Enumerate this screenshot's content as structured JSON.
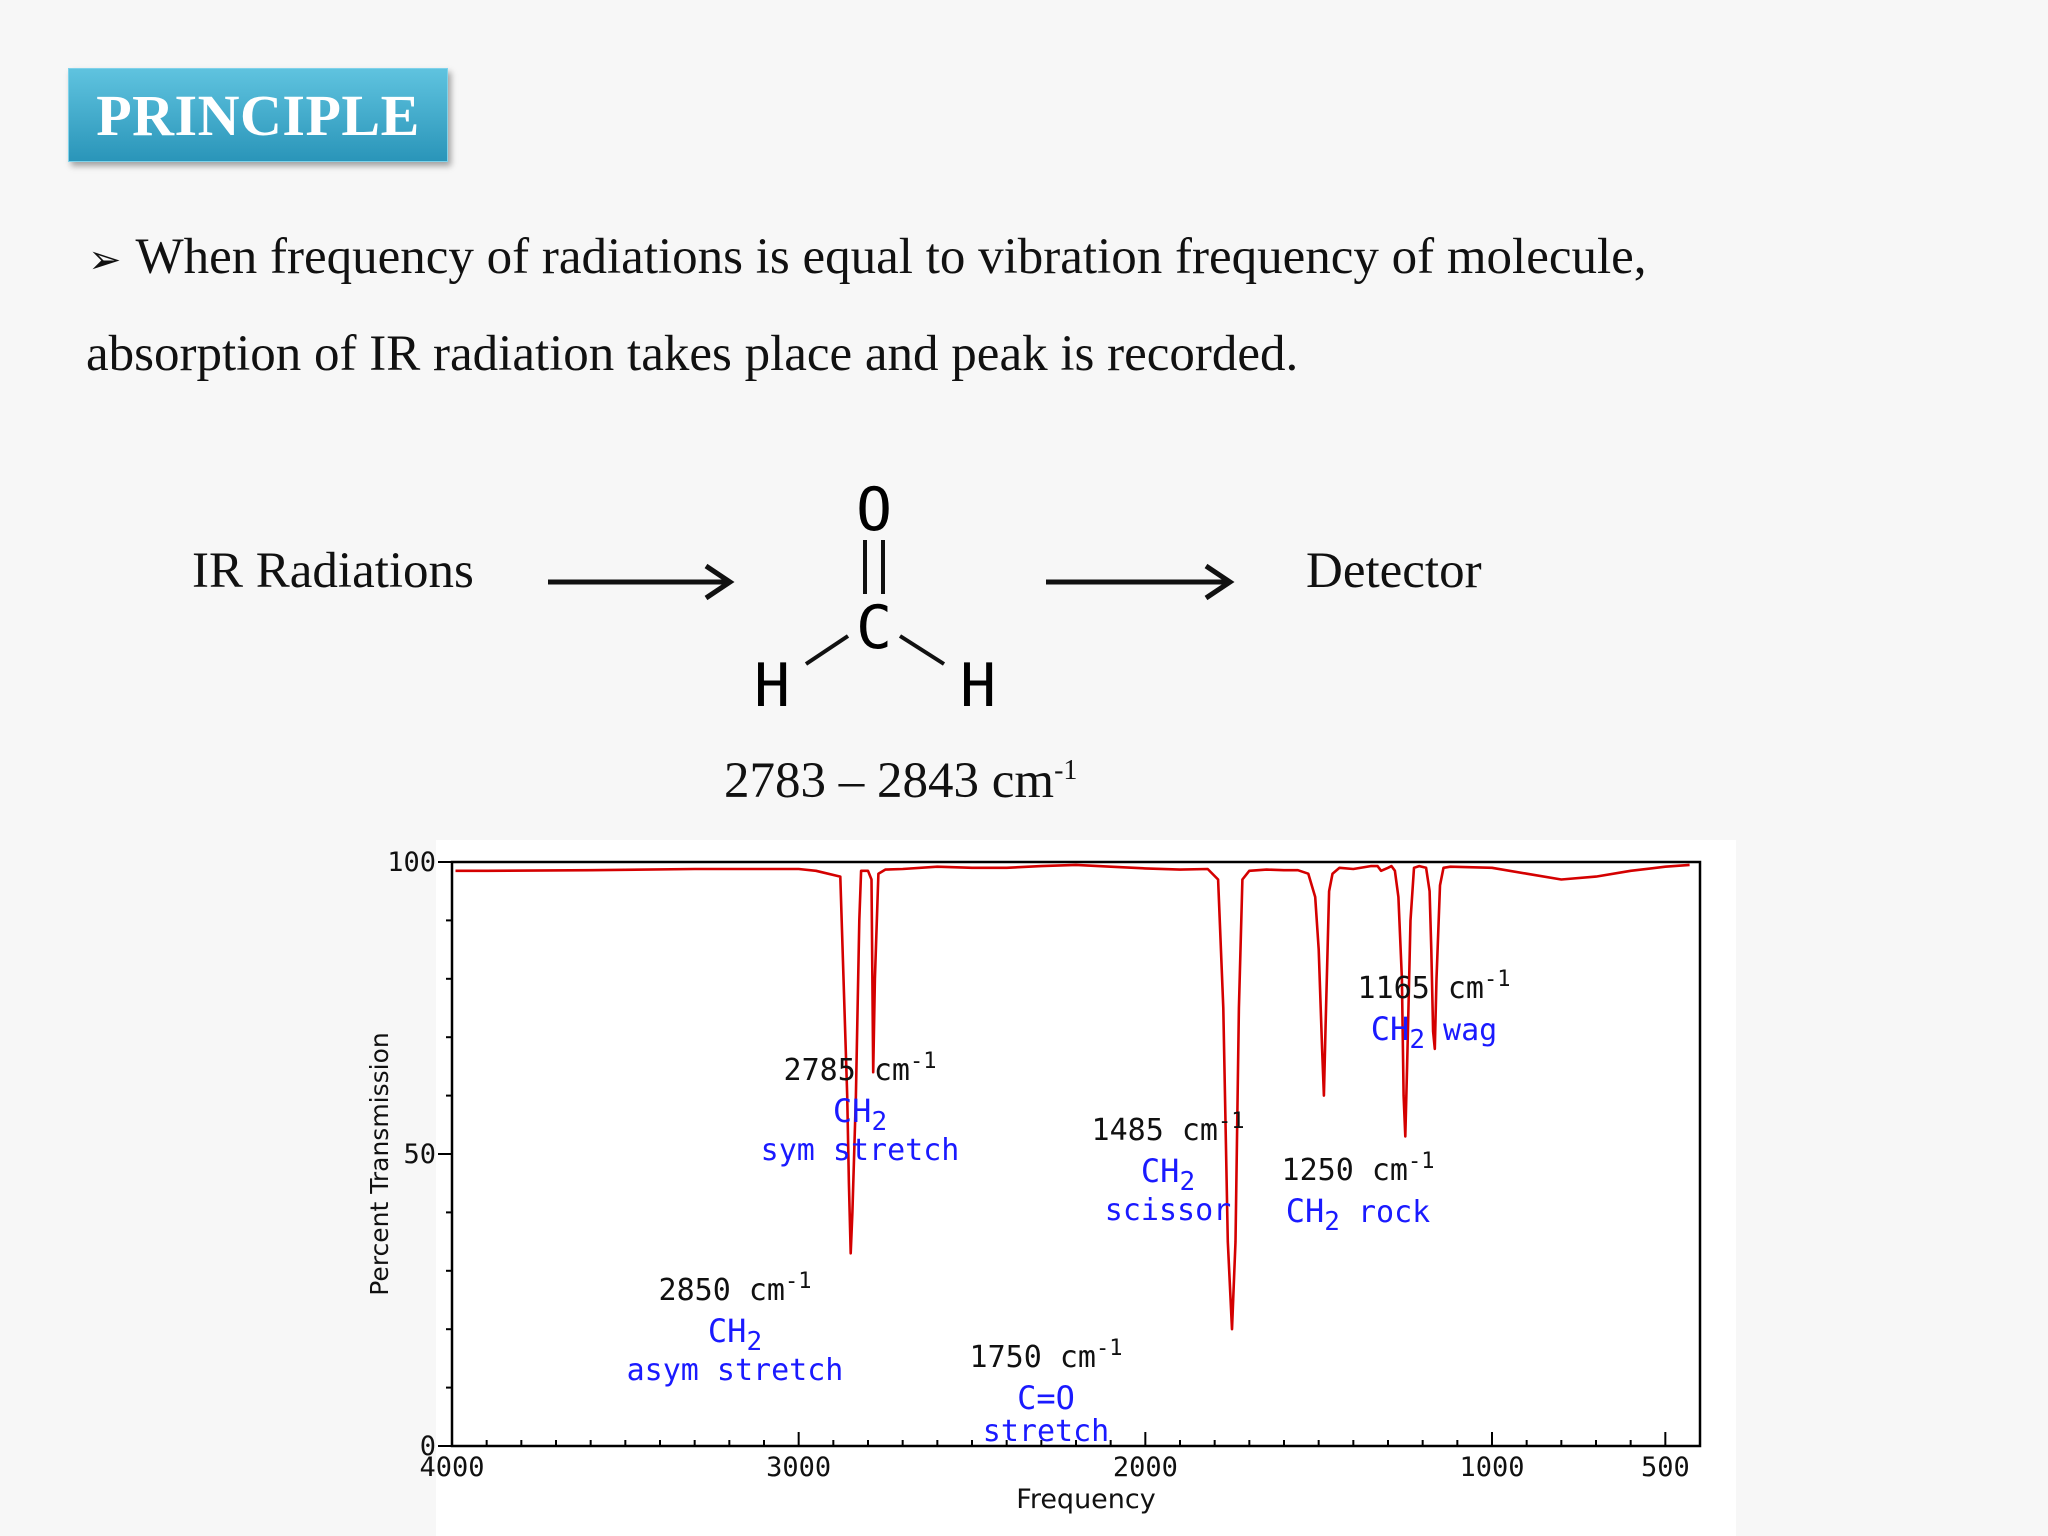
{
  "header": {
    "title": "PRINCIPLE"
  },
  "bullet": {
    "line1": "When frequency of radiations is equal to vibration frequency of molecule,",
    "line2": "absorption of IR radiation takes place and peak is recorded."
  },
  "diagram": {
    "source_label": "IR Radiations",
    "detector_label": "Detector",
    "molecule_atoms": {
      "top": "O",
      "center": "C",
      "left": "H",
      "right": "H"
    },
    "range_text": "2783 – 2843 cm",
    "range_sup": "-1"
  },
  "colors": {
    "title_bg": "#3aa8cb",
    "spectrum": "#d40000",
    "annotation_blue": "#1a1aff",
    "annotation_black": "#111111"
  },
  "chart_data": {
    "type": "line",
    "xlabel": "Frequency",
    "ylabel": "Percent Transmission",
    "xlim": [
      4000,
      400
    ],
    "ylim": [
      0,
      100
    ],
    "x_ticks": [
      "4000",
      "3000",
      "2000",
      "1000",
      "500"
    ],
    "x_tick_values": [
      4000,
      3000,
      2000,
      1000,
      500
    ],
    "y_ticks": [
      "100",
      "50",
      "0"
    ],
    "y_tick_values": [
      100,
      50,
      0
    ],
    "series": [
      {
        "x": [
          3990,
          3900,
          3600,
          3300,
          3000,
          2950,
          2880,
          2860,
          2855,
          2850,
          2845,
          2835,
          2825,
          2820,
          2810,
          2800,
          2790,
          2785,
          2780,
          2770,
          2750,
          2700,
          2600,
          2500,
          2400,
          2300,
          2200,
          2100,
          2000,
          1900,
          1820,
          1790,
          1775,
          1762,
          1750,
          1740,
          1730,
          1720,
          1700,
          1650,
          1600,
          1560,
          1530,
          1510,
          1500,
          1490,
          1485,
          1480,
          1470,
          1460,
          1440,
          1400,
          1350,
          1330,
          1320,
          1300,
          1290,
          1280,
          1270,
          1260,
          1255,
          1250,
          1245,
          1235,
          1225,
          1210,
          1190,
          1180,
          1175,
          1170,
          1165,
          1160,
          1150,
          1140,
          1120,
          1000,
          900,
          800,
          700,
          600,
          500,
          430
        ],
        "y": [
          98.5,
          98.5,
          98.6,
          98.8,
          98.8,
          98.5,
          97.5,
          60.0,
          45.0,
          33.0,
          40.0,
          60.0,
          90.0,
          98.5,
          98.5,
          98.5,
          97.0,
          64.0,
          80.0,
          98.0,
          98.7,
          98.8,
          99.2,
          99.0,
          99.0,
          99.3,
          99.5,
          99.2,
          98.9,
          98.7,
          98.8,
          97.0,
          75.0,
          35.0,
          20.0,
          35.0,
          75.0,
          97.0,
          98.5,
          98.7,
          98.6,
          98.6,
          98.0,
          94.0,
          85.0,
          68.0,
          60.0,
          72.0,
          95.0,
          98.0,
          99.0,
          98.8,
          99.3,
          99.3,
          98.5,
          99.0,
          99.3,
          98.5,
          94.0,
          80.0,
          60.0,
          53.0,
          65.0,
          90.0,
          99.0,
          99.3,
          99.0,
          95.0,
          85.0,
          71.0,
          68.0,
          80.0,
          96.0,
          99.0,
          99.2,
          99.0,
          98.0,
          97.0,
          97.5,
          98.5,
          99.2,
          99.5
        ]
      }
    ],
    "annotations": [
      {
        "x": 2850,
        "y": 33,
        "freq": "2850 cm",
        "sup": "-1",
        "group": "CH",
        "group_sub": "2",
        "mode": "asym stretch"
      },
      {
        "x": 2785,
        "y": 64,
        "freq": "2785 cm",
        "sup": "-1",
        "group": "CH",
        "group_sub": "2",
        "mode": "sym stretch"
      },
      {
        "x": 1750,
        "y": 20,
        "freq": "1750 cm",
        "sup": "-1",
        "group": "C=O",
        "group_sub": "",
        "mode": "stretch"
      },
      {
        "x": 1485,
        "y": 60,
        "freq": "1485 cm",
        "sup": "-1",
        "group": "CH",
        "group_sub": "2",
        "mode": "scissor"
      },
      {
        "x": 1250,
        "y": 53,
        "freq": "1250 cm",
        "sup": "-1",
        "group": "CH",
        "group_sub": "2",
        "mode": "rock"
      },
      {
        "x": 1165,
        "y": 68,
        "freq": "1165 cm",
        "sup": "-1",
        "group": "CH",
        "group_sub": "2",
        "mode": "wag"
      }
    ],
    "grid": false,
    "legend": "none"
  }
}
